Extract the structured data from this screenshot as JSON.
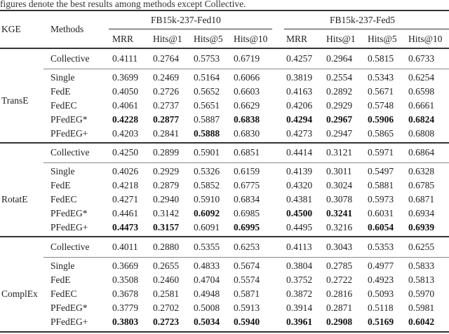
{
  "caption": "figures denote the best results among methods except Collective.",
  "header": {
    "kge": "KGE",
    "methods": "Methods",
    "datasets": [
      "FB15k-237-Fed10",
      "FB15k-237-Fed5"
    ],
    "metrics": [
      "MRR",
      "Hits@1",
      "Hits@5",
      "Hits@10",
      "MRR",
      "Hits@1",
      "Hits@5",
      "Hits@10"
    ]
  },
  "groups": [
    {
      "kge": "TransE",
      "collective": {
        "method": "Collective",
        "values": [
          "0.4111",
          "0.2764",
          "0.5753",
          "0.6719",
          "0.4257",
          "0.2964",
          "0.5815",
          "0.6733"
        ],
        "bold": []
      },
      "rows": [
        {
          "method": "Single",
          "values": [
            "0.3699",
            "0.2469",
            "0.5164",
            "0.6066",
            "0.3819",
            "0.2554",
            "0.5343",
            "0.6254"
          ],
          "bold": []
        },
        {
          "method": "FedE",
          "values": [
            "0.4050",
            "0.2726",
            "0.5652",
            "0.6603",
            "0.4163",
            "0.2892",
            "0.5671",
            "0.6598"
          ],
          "bold": []
        },
        {
          "method": "FedEC",
          "values": [
            "0.4061",
            "0.2737",
            "0.5651",
            "0.6629",
            "0.4206",
            "0.2929",
            "0.5748",
            "0.6661"
          ],
          "bold": []
        },
        {
          "method": "PFedEG*",
          "values": [
            "0.4228",
            "0.2877",
            "0.5887",
            "0.6838",
            "0.4294",
            "0.2967",
            "0.5906",
            "0.6824"
          ],
          "bold": [
            0,
            1,
            3,
            4,
            5,
            6,
            7
          ]
        },
        {
          "method": "PFedEG+",
          "values": [
            "0.4203",
            "0.2841",
            "0.5888",
            "0.6830",
            "0.4273",
            "0.2947",
            "0.5865",
            "0.6808"
          ],
          "bold": [
            2
          ]
        }
      ]
    },
    {
      "kge": "RotatE",
      "collective": {
        "method": "Collective",
        "values": [
          "0.4250",
          "0.2899",
          "0.5901",
          "0.6851",
          "0.4414",
          "0.3121",
          "0.5971",
          "0.6864"
        ],
        "bold": []
      },
      "rows": [
        {
          "method": "Single",
          "values": [
            "0.4026",
            "0.2929",
            "0.5326",
            "0.6159",
            "0.4139",
            "0.3011",
            "0.5497",
            "0.6328"
          ],
          "bold": []
        },
        {
          "method": "FedE",
          "values": [
            "0.4218",
            "0.2879",
            "0.5852",
            "0.6775",
            "0.4320",
            "0.3024",
            "0.5881",
            "0.6785"
          ],
          "bold": []
        },
        {
          "method": "FedEC",
          "values": [
            "0.4271",
            "0.2940",
            "0.5910",
            "0.6834",
            "0.4381",
            "0.3078",
            "0.5973",
            "0.6871"
          ],
          "bold": []
        },
        {
          "method": "PFedEG*",
          "values": [
            "0.4461",
            "0.3142",
            "0.6092",
            "0.6985",
            "0.4500",
            "0.3241",
            "0.6031",
            "0.6934"
          ],
          "bold": [
            2,
            4,
            5
          ]
        },
        {
          "method": "PFedEG+",
          "values": [
            "0.4473",
            "0.3157",
            "0.6091",
            "0.6995",
            "0.4495",
            "0.3216",
            "0.6054",
            "0.6939"
          ],
          "bold": [
            0,
            1,
            3,
            6,
            7
          ]
        }
      ]
    },
    {
      "kge": "ComplEx",
      "collective": {
        "method": "Collective",
        "values": [
          "0.4011",
          "0.2880",
          "0.5355",
          "0.6253",
          "0.4113",
          "0.3043",
          "0.5353",
          "0.6255"
        ],
        "bold": []
      },
      "rows": [
        {
          "method": "Single",
          "values": [
            "0.3669",
            "0.2655",
            "0.4833",
            "0.5674",
            "0.3804",
            "0.2785",
            "0.4977",
            "0.5833"
          ],
          "bold": []
        },
        {
          "method": "FedE",
          "values": [
            "0.3508",
            "0.2460",
            "0.4704",
            "0.5574",
            "0.3752",
            "0.2722",
            "0.4923",
            "0.5813"
          ],
          "bold": []
        },
        {
          "method": "FedEC",
          "values": [
            "0.3678",
            "0.2581",
            "0.4948",
            "0.5871",
            "0.3872",
            "0.2816",
            "0.5093",
            "0.5970"
          ],
          "bold": []
        },
        {
          "method": "PFedEG*",
          "values": [
            "0.3779",
            "0.2702",
            "0.5008",
            "0.5913",
            "0.3914",
            "0.2871",
            "0.5118",
            "0.5981"
          ],
          "bold": []
        },
        {
          "method": "PFedEG+",
          "values": [
            "0.3803",
            "0.2723",
            "0.5034",
            "0.5940",
            "0.3961",
            "0.2908",
            "0.5169",
            "0.6042"
          ],
          "bold": [
            0,
            1,
            2,
            3,
            4,
            5,
            6,
            7
          ]
        }
      ]
    }
  ]
}
